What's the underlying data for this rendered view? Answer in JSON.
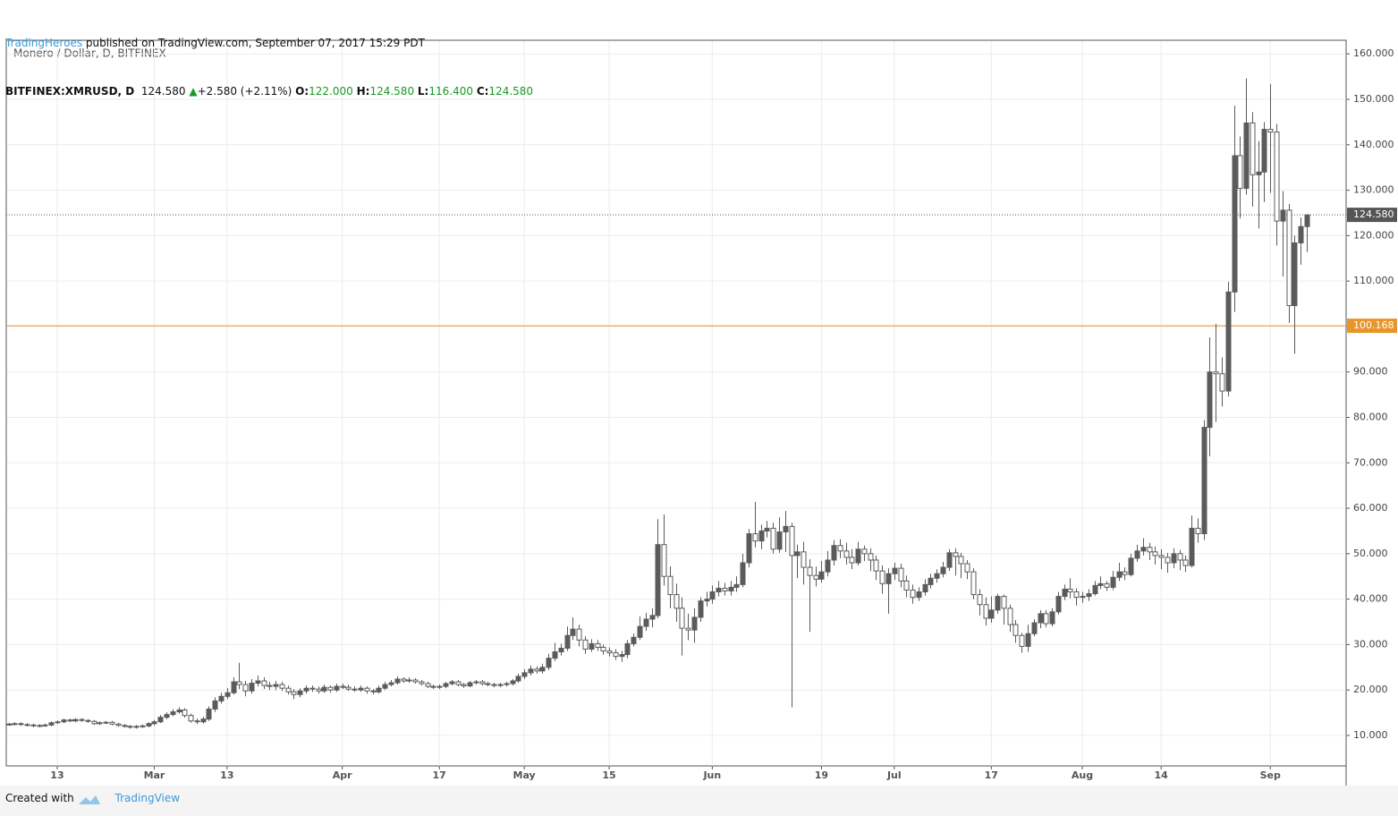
{
  "header": {
    "source": "TradingHeroes",
    "published": "published on TradingView.com, September 07, 2017 15:29 PDT",
    "symbol": "BITFINEX:XMRUSD, D",
    "last": "124.580",
    "arrow": "▲",
    "change": "+2.580 (+2.11%)",
    "ohlc": [
      {
        "label": "O:",
        "value": "122.000"
      },
      {
        "label": "H:",
        "value": "124.580"
      },
      {
        "label": "L:",
        "value": "116.400"
      },
      {
        "label": "C:",
        "value": "124.580"
      }
    ]
  },
  "footer": {
    "created": "Created with",
    "brand": "TradingView"
  },
  "chart_data": {
    "type": "candlestick",
    "title": "Monero / Dollar, D, BITFINEX",
    "up_color": "#5b5b5b",
    "down_color": "#ffffff",
    "outline_color": "#5b5b5b",
    "grid": true,
    "ylim": [
      3.3,
      163
    ],
    "xlim": [
      -0.4,
      220.5
    ],
    "yticks": [
      {
        "value": 10,
        "label": "10.000"
      },
      {
        "value": 20,
        "label": "20.000"
      },
      {
        "value": 30,
        "label": "30.000"
      },
      {
        "value": 40,
        "label": "40.000"
      },
      {
        "value": 50,
        "label": "50.000"
      },
      {
        "value": 60,
        "label": "60.000"
      },
      {
        "value": 70,
        "label": "70.000"
      },
      {
        "value": 80,
        "label": "80.000"
      },
      {
        "value": 90,
        "label": "90.000"
      },
      {
        "value": 100,
        "label": "100.000"
      },
      {
        "value": 110,
        "label": "110.000"
      },
      {
        "value": 120,
        "label": "120.000"
      },
      {
        "value": 130,
        "label": "130.000"
      },
      {
        "value": 140,
        "label": "140.000"
      },
      {
        "value": 150,
        "label": "150.000"
      },
      {
        "value": 160,
        "label": "160.000"
      }
    ],
    "xticks": [
      {
        "value": 8,
        "label": "13"
      },
      {
        "value": 24,
        "label": "Mar"
      },
      {
        "value": 36,
        "label": "13"
      },
      {
        "value": 55,
        "label": "Apr"
      },
      {
        "value": 71,
        "label": "17"
      },
      {
        "value": 85,
        "label": "May"
      },
      {
        "value": 99,
        "label": "15"
      },
      {
        "value": 116,
        "label": "Jun"
      },
      {
        "value": 134,
        "label": "19"
      },
      {
        "value": 146,
        "label": "Jul"
      },
      {
        "value": 162,
        "label": "17"
      },
      {
        "value": 177,
        "label": "Aug"
      },
      {
        "value": 190,
        "label": "14"
      },
      {
        "value": 208,
        "label": "Sep"
      }
    ],
    "price_lines": [
      {
        "value": 124.58,
        "label": "124.580",
        "color": "#555555",
        "dashed": true
      },
      {
        "value": 100.168,
        "label": "100.168",
        "color": "#e8962c",
        "dashed": false
      }
    ],
    "open": [
      12.4,
      12.5,
      12.6,
      12.4,
      12.3,
      12.1,
      12.2,
      12.3,
      12.8,
      13.0,
      13.4,
      13.2,
      13.5,
      13.3,
      13.1,
      12.6,
      12.8,
      12.9,
      12.5,
      12.2,
      12.0,
      11.8,
      12.0,
      12.1,
      12.6,
      13.0,
      14.0,
      14.6,
      15.2,
      15.6,
      14.4,
      13.2,
      13.0,
      13.6,
      15.8,
      17.6,
      18.6,
      19.4,
      21.8,
      21.2,
      19.8,
      21.5,
      22.0,
      21.0,
      20.8,
      21.2,
      20.4,
      19.6,
      19.0,
      19.8,
      20.4,
      20.2,
      19.8,
      20.6,
      20.0,
      20.8,
      20.6,
      20.2,
      20.0,
      20.4,
      19.8,
      19.6,
      20.4,
      21.2,
      21.6,
      22.4,
      22.0,
      22.2,
      21.8,
      21.4,
      20.8,
      20.6,
      20.8,
      21.4,
      21.8,
      21.2,
      20.9,
      21.6,
      21.8,
      21.4,
      21.2,
      21.0,
      21.2,
      21.4,
      22.0,
      23.0,
      23.8,
      24.6,
      24.2,
      25.0,
      27.0,
      28.4,
      29.2,
      32.0,
      33.4,
      31.0,
      29.0,
      30.2,
      29.4,
      28.6,
      28.2,
      27.4,
      27.8,
      30.2,
      31.6,
      34.0,
      35.6,
      36.4,
      52.0,
      45.0,
      41.0,
      38.0,
      33.6,
      33.2,
      36.0,
      39.6,
      40.0,
      41.6,
      42.4,
      41.8,
      42.6,
      43.2,
      48.0,
      54.4,
      52.8,
      55.0,
      55.6,
      51.0,
      54.8,
      56.0,
      49.6,
      50.4,
      47.0,
      45.2,
      44.4,
      46.0,
      48.6,
      51.8,
      50.6,
      49.2,
      48.0,
      51.0,
      50.0,
      48.6,
      46.2,
      43.4,
      45.6,
      46.8,
      44.0,
      42.0,
      40.4,
      41.6,
      43.2,
      44.6,
      45.6,
      47.0,
      50.2,
      49.4,
      47.8,
      46.0,
      41.0,
      38.8,
      35.8,
      37.6,
      40.6,
      38.0,
      34.4,
      32.0,
      29.6,
      32.4,
      34.8,
      36.8,
      34.6,
      37.2,
      40.6,
      42.2,
      41.6,
      40.4,
      40.6,
      41.2,
      43.0,
      43.4,
      42.6,
      44.8,
      46.0,
      45.4,
      49.0,
      50.6,
      51.4,
      50.4,
      49.6,
      49.2,
      48.0,
      50.0,
      48.6,
      47.4,
      55.6,
      54.4,
      77.8,
      90.0,
      89.6,
      85.8,
      107.6,
      137.6,
      130.4,
      144.8,
      133.4,
      134.0,
      143.4,
      142.8,
      123.2,
      125.6,
      104.6,
      118.4,
      122.0
    ],
    "high": [
      12.8,
      12.9,
      12.9,
      12.7,
      12.6,
      12.5,
      12.6,
      13.1,
      13.3,
      13.7,
      13.7,
      13.8,
      13.8,
      13.6,
      13.4,
      13.1,
      13.2,
      13.2,
      12.8,
      12.5,
      12.3,
      12.3,
      12.4,
      12.9,
      13.4,
      14.5,
      15.1,
      15.8,
      16.2,
      16.0,
      14.8,
      13.7,
      14.1,
      16.4,
      18.4,
      19.4,
      20.4,
      22.8,
      26.0,
      22.0,
      22.4,
      23.2,
      22.8,
      21.8,
      22.0,
      21.8,
      21.0,
      20.2,
      20.4,
      21.0,
      21.0,
      20.8,
      21.2,
      21.0,
      21.4,
      21.4,
      21.2,
      20.8,
      21.0,
      20.8,
      20.2,
      21.0,
      21.8,
      22.2,
      23.0,
      22.8,
      22.8,
      22.6,
      22.2,
      21.8,
      21.2,
      21.2,
      21.8,
      22.2,
      22.2,
      21.6,
      22.0,
      22.2,
      22.2,
      21.8,
      21.6,
      21.6,
      21.8,
      22.4,
      23.6,
      24.6,
      25.4,
      25.2,
      25.8,
      28.0,
      30.4,
      30.2,
      34.0,
      36.0,
      34.4,
      31.8,
      31.2,
      31.0,
      30.0,
      29.4,
      29.0,
      28.6,
      31.0,
      32.4,
      36.2,
      37.0,
      38.0,
      57.6,
      58.6,
      47.2,
      43.4,
      40.4,
      36.8,
      38.0,
      40.4,
      41.6,
      43.0,
      44.0,
      43.6,
      44.0,
      45.0,
      50.0,
      55.4,
      61.4,
      56.4,
      57.2,
      56.8,
      58.0,
      59.4,
      56.8,
      52.0,
      52.6,
      48.8,
      47.2,
      48.4,
      50.6,
      53.0,
      53.2,
      52.4,
      51.0,
      52.6,
      51.8,
      51.2,
      49.6,
      47.4,
      46.8,
      48.0,
      47.8,
      45.2,
      43.2,
      42.6,
      44.4,
      45.6,
      46.6,
      48.2,
      51.0,
      51.2,
      50.2,
      48.6,
      46.8,
      42.2,
      40.4,
      40.6,
      41.2,
      41.0,
      38.8,
      35.4,
      32.6,
      34.4,
      35.6,
      37.6,
      37.6,
      38.0,
      41.6,
      43.2,
      44.6,
      42.4,
      41.6,
      42.2,
      44.0,
      45.0,
      44.0,
      46.2,
      48.0,
      47.0,
      50.0,
      52.0,
      53.4,
      52.4,
      51.6,
      51.0,
      50.2,
      51.2,
      50.8,
      49.6,
      58.4,
      57.8,
      79.4,
      97.6,
      100.6,
      93.2,
      109.8,
      148.6,
      141.8,
      154.6,
      147.2,
      140.8,
      145.0,
      153.4,
      144.6,
      129.8,
      127.0,
      120.0,
      124.0,
      124.58
    ],
    "low": [
      12.1,
      12.2,
      12.1,
      12.0,
      11.8,
      11.8,
      11.9,
      12.0,
      12.5,
      12.7,
      12.9,
      12.9,
      13.0,
      12.8,
      12.3,
      12.3,
      12.5,
      12.2,
      11.9,
      11.7,
      11.5,
      11.5,
      11.7,
      11.8,
      12.2,
      12.7,
      13.6,
      14.2,
      14.8,
      13.9,
      12.8,
      12.5,
      12.6,
      13.2,
      15.2,
      17.0,
      18.0,
      19.0,
      20.2,
      18.6,
      19.2,
      20.8,
      20.2,
      20.0,
      20.0,
      19.8,
      19.0,
      18.0,
      18.4,
      19.2,
      19.6,
      19.2,
      19.4,
      19.4,
      19.6,
      20.2,
      19.8,
      19.6,
      19.6,
      19.2,
      19.0,
      19.2,
      20.0,
      20.8,
      21.2,
      21.6,
      21.6,
      21.4,
      21.0,
      20.4,
      20.2,
      20.2,
      20.4,
      21.0,
      20.8,
      20.5,
      20.6,
      21.2,
      21.0,
      20.8,
      20.6,
      20.6,
      20.8,
      21.0,
      21.6,
      22.4,
      23.2,
      23.6,
      23.6,
      24.4,
      26.4,
      27.6,
      28.6,
      31.0,
      29.6,
      28.0,
      28.4,
      28.6,
      27.8,
      27.4,
      26.6,
      26.2,
      27.0,
      29.6,
      31.0,
      33.0,
      33.8,
      35.8,
      43.0,
      38.0,
      35.0,
      27.6,
      31.0,
      30.4,
      35.0,
      38.4,
      39.0,
      40.6,
      40.8,
      40.8,
      41.6,
      42.6,
      47.0,
      51.4,
      51.0,
      53.6,
      50.0,
      50.2,
      50.4,
      16.2,
      44.6,
      43.2,
      32.8,
      42.8,
      43.6,
      45.0,
      47.4,
      49.0,
      47.6,
      46.6,
      47.4,
      48.4,
      46.2,
      44.2,
      41.2,
      36.8,
      44.2,
      42.6,
      40.4,
      39.0,
      39.6,
      40.8,
      42.4,
      43.6,
      44.8,
      46.2,
      45.2,
      44.6,
      44.4,
      40.0,
      36.4,
      34.2,
      34.8,
      36.8,
      34.4,
      32.8,
      30.4,
      28.2,
      28.4,
      31.8,
      33.6,
      33.8,
      34.0,
      36.6,
      39.8,
      40.2,
      38.6,
      39.2,
      39.6,
      40.8,
      42.2,
      41.8,
      42.0,
      44.0,
      44.2,
      45.0,
      48.2,
      49.6,
      48.6,
      47.6,
      46.6,
      45.8,
      46.8,
      46.4,
      46.0,
      47.0,
      52.4,
      53.0,
      71.4,
      79.0,
      82.4,
      84.6,
      103.2,
      123.8,
      129.0,
      126.4,
      121.6,
      127.4,
      129.4,
      117.8,
      111.0,
      100.8,
      94.0,
      113.6,
      116.4
    ],
    "close": [
      12.5,
      12.6,
      12.4,
      12.3,
      12.1,
      12.2,
      12.3,
      12.8,
      13.0,
      13.4,
      13.2,
      13.5,
      13.3,
      13.1,
      12.6,
      12.8,
      12.9,
      12.5,
      12.2,
      12.0,
      11.8,
      12.0,
      12.1,
      12.6,
      13.0,
      14.0,
      14.6,
      15.2,
      15.6,
      14.4,
      13.2,
      13.0,
      13.6,
      15.8,
      17.6,
      18.6,
      19.4,
      21.8,
      21.2,
      19.8,
      21.5,
      22.0,
      21.0,
      20.8,
      21.2,
      20.4,
      19.6,
      19.0,
      19.8,
      20.4,
      20.2,
      19.8,
      20.6,
      20.0,
      20.8,
      20.6,
      20.2,
      20.0,
      20.4,
      19.8,
      19.6,
      20.4,
      21.2,
      21.6,
      22.4,
      22.0,
      22.2,
      21.8,
      21.4,
      20.8,
      20.6,
      20.8,
      21.4,
      21.8,
      21.2,
      20.9,
      21.6,
      21.8,
      21.4,
      21.2,
      21.0,
      21.2,
      21.4,
      22.0,
      23.0,
      23.8,
      24.6,
      24.2,
      25.0,
      27.0,
      28.4,
      29.2,
      32.0,
      33.4,
      31.0,
      29.0,
      30.2,
      29.4,
      28.6,
      28.2,
      27.4,
      27.8,
      30.2,
      31.6,
      34.0,
      35.6,
      36.4,
      52.0,
      45.0,
      41.0,
      38.0,
      33.6,
      33.2,
      36.0,
      39.6,
      40.0,
      41.6,
      42.4,
      41.8,
      42.6,
      43.2,
      48.0,
      54.4,
      52.8,
      55.0,
      55.6,
      51.0,
      54.8,
      56.0,
      49.6,
      50.4,
      47.0,
      45.2,
      44.4,
      46.0,
      48.6,
      51.8,
      50.6,
      49.2,
      48.0,
      51.0,
      50.0,
      48.6,
      46.2,
      43.4,
      45.6,
      46.8,
      44.0,
      42.0,
      40.4,
      41.6,
      43.2,
      44.6,
      45.6,
      47.0,
      50.2,
      49.4,
      47.8,
      46.0,
      41.0,
      38.8,
      35.8,
      37.6,
      40.6,
      38.0,
      34.4,
      32.0,
      29.6,
      32.4,
      34.8,
      36.8,
      34.6,
      37.2,
      40.6,
      42.2,
      41.6,
      40.4,
      40.6,
      41.2,
      43.0,
      43.4,
      42.6,
      44.8,
      46.0,
      45.4,
      49.0,
      50.6,
      51.4,
      50.4,
      49.6,
      49.2,
      48.0,
      50.0,
      48.6,
      47.4,
      55.6,
      54.4,
      77.8,
      90.0,
      89.6,
      85.8,
      107.6,
      137.6,
      130.4,
      144.8,
      133.4,
      134.0,
      143.4,
      142.8,
      123.2,
      125.6,
      104.6,
      118.4,
      122.0,
      124.58
    ]
  }
}
